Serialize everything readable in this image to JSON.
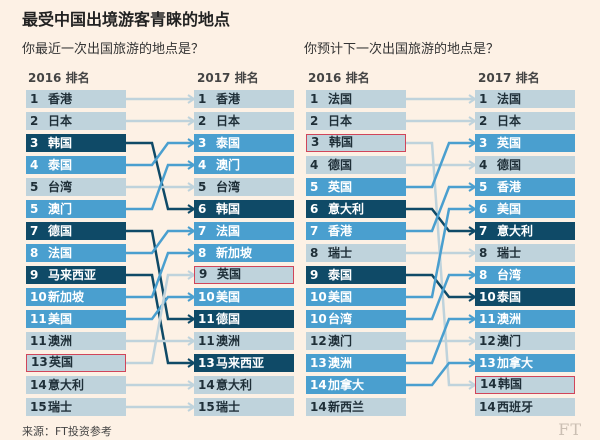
{
  "title": "最受中国出境游客青睐的地点",
  "source": "来源：FT投资参考",
  "watermark": "FT",
  "colors": {
    "light": "#bfd3dc",
    "mid": "#4a9fcf",
    "dark": "#0f4a67",
    "highlight_border": "#d0455a",
    "background": "#fdf1e5"
  },
  "chart_data": [
    {
      "type": "slope",
      "question": "你最近一次出国旅游的地点是？",
      "left_header": "2016 排名",
      "right_header": "2017 排名",
      "left": [
        {
          "rank": "1",
          "name": "香港",
          "color": "light"
        },
        {
          "rank": "2",
          "name": "日本",
          "color": "light"
        },
        {
          "rank": "3",
          "name": "韩国",
          "color": "dark"
        },
        {
          "rank": "4",
          "name": "泰国",
          "color": "mid"
        },
        {
          "rank": "5",
          "name": "台湾",
          "color": "light"
        },
        {
          "rank": "5",
          "name": "澳门",
          "color": "mid"
        },
        {
          "rank": "7",
          "name": "德国",
          "color": "dark"
        },
        {
          "rank": "8",
          "name": "法国",
          "color": "mid"
        },
        {
          "rank": "9",
          "name": "马来西亚",
          "color": "dark"
        },
        {
          "rank": "10",
          "name": "新加坡",
          "color": "mid"
        },
        {
          "rank": "11",
          "name": "美国",
          "color": "mid"
        },
        {
          "rank": "11",
          "name": "澳洲",
          "color": "light"
        },
        {
          "rank": "13",
          "name": "英国",
          "color": "light",
          "highlight": true
        },
        {
          "rank": "14",
          "name": "意大利",
          "color": "light"
        },
        {
          "rank": "15",
          "name": "瑞士",
          "color": "light"
        }
      ],
      "right": [
        {
          "rank": "1",
          "name": "香港",
          "color": "light"
        },
        {
          "rank": "2",
          "name": "日本",
          "color": "light"
        },
        {
          "rank": "3",
          "name": "泰国",
          "color": "mid"
        },
        {
          "rank": "4",
          "name": "澳门",
          "color": "mid"
        },
        {
          "rank": "5",
          "name": "台湾",
          "color": "light"
        },
        {
          "rank": "6",
          "name": "韩国",
          "color": "dark"
        },
        {
          "rank": "7",
          "name": "法国",
          "color": "mid"
        },
        {
          "rank": "8",
          "name": "新加坡",
          "color": "mid"
        },
        {
          "rank": "9",
          "name": "英国",
          "color": "light",
          "highlight": true
        },
        {
          "rank": "10",
          "name": "美国",
          "color": "mid"
        },
        {
          "rank": "11",
          "name": "德国",
          "color": "dark"
        },
        {
          "rank": "11",
          "name": "澳洲",
          "color": "light"
        },
        {
          "rank": "13",
          "name": "马来西亚",
          "color": "dark"
        },
        {
          "rank": "14",
          "name": "意大利",
          "color": "light"
        },
        {
          "rank": "15",
          "name": "瑞士",
          "color": "light"
        }
      ],
      "links": [
        [
          0,
          0
        ],
        [
          1,
          1
        ],
        [
          2,
          5
        ],
        [
          3,
          2
        ],
        [
          4,
          4
        ],
        [
          5,
          3
        ],
        [
          6,
          10
        ],
        [
          7,
          6
        ],
        [
          8,
          12
        ],
        [
          9,
          7
        ],
        [
          10,
          9
        ],
        [
          11,
          11
        ],
        [
          12,
          8
        ],
        [
          13,
          13
        ],
        [
          14,
          14
        ]
      ]
    },
    {
      "type": "slope",
      "question": "你预计下一次出国旅游的地点是？",
      "left_header": "2016 排名",
      "right_header": "2017 排名",
      "left": [
        {
          "rank": "1",
          "name": "法国",
          "color": "light"
        },
        {
          "rank": "2",
          "name": "日本",
          "color": "light"
        },
        {
          "rank": "3",
          "name": "韩国",
          "color": "light",
          "highlight": true
        },
        {
          "rank": "4",
          "name": "德国",
          "color": "light"
        },
        {
          "rank": "5",
          "name": "英国",
          "color": "mid"
        },
        {
          "rank": "6",
          "name": "意大利",
          "color": "dark"
        },
        {
          "rank": "7",
          "name": "香港",
          "color": "mid"
        },
        {
          "rank": "8",
          "name": "瑞士",
          "color": "light"
        },
        {
          "rank": "9",
          "name": "泰国",
          "color": "dark"
        },
        {
          "rank": "10",
          "name": "美国",
          "color": "mid"
        },
        {
          "rank": "10",
          "name": "台湾",
          "color": "mid"
        },
        {
          "rank": "12",
          "name": "澳门",
          "color": "light"
        },
        {
          "rank": "13",
          "name": "澳洲",
          "color": "mid"
        },
        {
          "rank": "14",
          "name": "加拿大",
          "color": "mid"
        },
        {
          "rank": "14",
          "name": "新西兰",
          "color": "light"
        }
      ],
      "right": [
        {
          "rank": "1",
          "name": "法国",
          "color": "light"
        },
        {
          "rank": "2",
          "name": "日本",
          "color": "light"
        },
        {
          "rank": "3",
          "name": "英国",
          "color": "mid"
        },
        {
          "rank": "4",
          "name": "德国",
          "color": "light"
        },
        {
          "rank": "5",
          "name": "香港",
          "color": "mid"
        },
        {
          "rank": "6",
          "name": "美国",
          "color": "mid"
        },
        {
          "rank": "7",
          "name": "意大利",
          "color": "dark"
        },
        {
          "rank": "8",
          "name": "瑞士",
          "color": "light"
        },
        {
          "rank": "8",
          "name": "台湾",
          "color": "mid"
        },
        {
          "rank": "10",
          "name": "泰国",
          "color": "dark"
        },
        {
          "rank": "11",
          "name": "澳洲",
          "color": "mid"
        },
        {
          "rank": "12",
          "name": "澳门",
          "color": "light"
        },
        {
          "rank": "13",
          "name": "加拿大",
          "color": "mid"
        },
        {
          "rank": "14",
          "name": "韩国",
          "color": "light",
          "highlight": true
        },
        {
          "rank": "14",
          "name": "西班牙",
          "color": "light"
        }
      ],
      "links": [
        [
          0,
          0
        ],
        [
          1,
          1
        ],
        [
          2,
          13
        ],
        [
          3,
          3
        ],
        [
          4,
          2
        ],
        [
          5,
          6
        ],
        [
          6,
          4
        ],
        [
          7,
          7
        ],
        [
          8,
          9
        ],
        [
          9,
          5
        ],
        [
          10,
          8
        ],
        [
          11,
          11
        ],
        [
          12,
          10
        ],
        [
          13,
          12
        ]
      ]
    }
  ]
}
